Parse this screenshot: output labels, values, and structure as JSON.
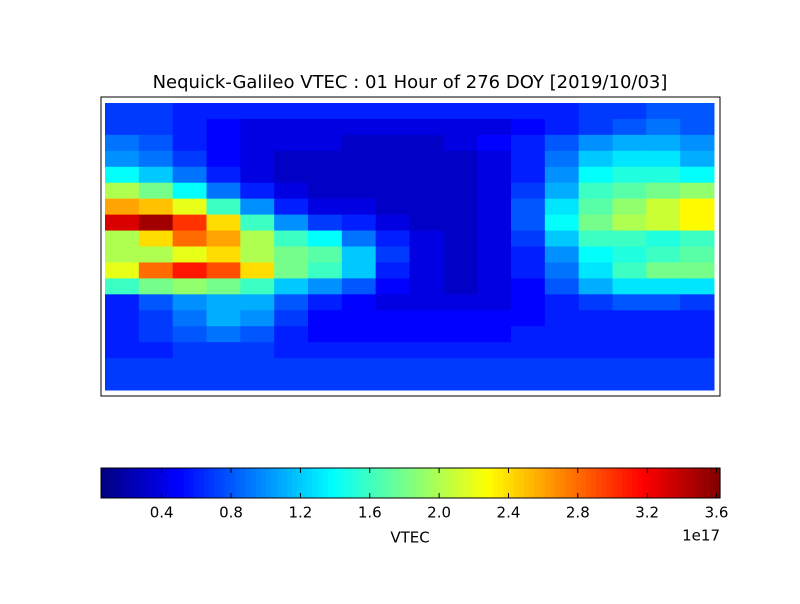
{
  "chart_data": {
    "type": "heatmap",
    "title": "Nequick-Galileo VTEC : 01 Hour of 276 DOY [2019/10/03]",
    "colormap": "jet",
    "xlim": [
      -180,
      180
    ],
    "ylim": [
      -90,
      90
    ],
    "x": [
      -170,
      -150,
      -130,
      -110,
      -90,
      -70,
      -50,
      -30,
      -10,
      10,
      30,
      50,
      70,
      90,
      110,
      130,
      150,
      170
    ],
    "y": [
      85,
      75,
      65,
      55,
      45,
      35,
      25,
      15,
      5,
      -5,
      -15,
      -25,
      -35,
      -45,
      -55,
      -65,
      -75,
      -85
    ],
    "z": [
      [
        0.7,
        0.7,
        0.6,
        0.6,
        0.6,
        0.6,
        0.6,
        0.6,
        0.6,
        0.6,
        0.6,
        0.6,
        0.6,
        0.6,
        0.7,
        0.7,
        0.8,
        0.8
      ],
      [
        0.7,
        0.7,
        0.6,
        0.5,
        0.4,
        0.4,
        0.4,
        0.4,
        0.4,
        0.4,
        0.4,
        0.4,
        0.5,
        0.6,
        0.7,
        0.8,
        0.9,
        0.8
      ],
      [
        0.9,
        0.8,
        0.6,
        0.5,
        0.4,
        0.4,
        0.4,
        0.3,
        0.3,
        0.3,
        0.4,
        0.5,
        0.6,
        0.8,
        1.0,
        1.1,
        1.1,
        1.0
      ],
      [
        1.0,
        0.9,
        0.7,
        0.5,
        0.4,
        0.3,
        0.3,
        0.3,
        0.3,
        0.3,
        0.3,
        0.4,
        0.6,
        0.9,
        1.2,
        1.3,
        1.3,
        1.1
      ],
      [
        1.4,
        1.2,
        0.9,
        0.6,
        0.4,
        0.3,
        0.3,
        0.3,
        0.3,
        0.3,
        0.3,
        0.4,
        0.6,
        1.0,
        1.4,
        1.5,
        1.5,
        1.4
      ],
      [
        2.0,
        1.8,
        1.4,
        0.9,
        0.6,
        0.4,
        0.3,
        0.3,
        0.3,
        0.3,
        0.3,
        0.4,
        0.7,
        1.1,
        1.6,
        1.7,
        1.8,
        1.9
      ],
      [
        2.6,
        2.5,
        2.2,
        1.6,
        1.0,
        0.6,
        0.4,
        0.4,
        0.3,
        0.3,
        0.3,
        0.4,
        0.8,
        1.3,
        1.7,
        1.9,
        2.1,
        2.3
      ],
      [
        3.3,
        3.5,
        3.0,
        2.4,
        1.6,
        1.0,
        0.7,
        0.6,
        0.4,
        0.3,
        0.3,
        0.4,
        0.8,
        1.4,
        1.8,
        2.0,
        2.1,
        2.3
      ],
      [
        2.0,
        2.4,
        2.8,
        2.6,
        2.0,
        1.6,
        1.4,
        0.9,
        0.6,
        0.4,
        0.3,
        0.4,
        0.7,
        1.2,
        1.6,
        1.6,
        1.5,
        1.6
      ],
      [
        2.0,
        2.0,
        2.2,
        2.4,
        2.0,
        1.8,
        1.7,
        1.2,
        0.7,
        0.4,
        0.3,
        0.4,
        0.6,
        1.0,
        1.4,
        1.5,
        1.6,
        1.7
      ],
      [
        2.2,
        2.8,
        3.1,
        2.9,
        2.4,
        1.8,
        1.6,
        1.2,
        0.6,
        0.4,
        0.3,
        0.4,
        0.6,
        0.9,
        1.3,
        1.6,
        1.8,
        1.8
      ],
      [
        1.6,
        1.8,
        1.9,
        1.8,
        1.6,
        1.2,
        1.0,
        0.8,
        0.5,
        0.4,
        0.3,
        0.4,
        0.5,
        0.8,
        1.1,
        1.3,
        1.3,
        1.3
      ],
      [
        0.6,
        0.8,
        1.0,
        1.1,
        1.1,
        0.8,
        0.6,
        0.5,
        0.4,
        0.4,
        0.4,
        0.4,
        0.5,
        0.6,
        0.7,
        0.8,
        0.8,
        0.7
      ],
      [
        0.6,
        0.7,
        0.9,
        1.1,
        1.0,
        0.7,
        0.5,
        0.5,
        0.5,
        0.5,
        0.5,
        0.5,
        0.5,
        0.6,
        0.6,
        0.6,
        0.6,
        0.6
      ],
      [
        0.6,
        0.7,
        0.8,
        0.9,
        0.8,
        0.6,
        0.5,
        0.5,
        0.5,
        0.5,
        0.5,
        0.5,
        0.6,
        0.6,
        0.6,
        0.6,
        0.6,
        0.6
      ],
      [
        0.6,
        0.6,
        0.7,
        0.7,
        0.7,
        0.6,
        0.6,
        0.6,
        0.6,
        0.6,
        0.6,
        0.6,
        0.6,
        0.6,
        0.6,
        0.6,
        0.6,
        0.6
      ],
      [
        0.7,
        0.7,
        0.7,
        0.7,
        0.7,
        0.7,
        0.7,
        0.7,
        0.7,
        0.7,
        0.7,
        0.7,
        0.7,
        0.7,
        0.7,
        0.7,
        0.7,
        0.7
      ],
      [
        0.7,
        0.7,
        0.7,
        0.7,
        0.7,
        0.7,
        0.7,
        0.7,
        0.7,
        0.7,
        0.7,
        0.7,
        0.7,
        0.7,
        0.7,
        0.7,
        0.7,
        0.7
      ]
    ],
    "colorbar": {
      "label": "VTEC",
      "offset_text": "1e17",
      "clim": [
        0.05,
        3.62
      ],
      "ticks": [
        0.4,
        0.8,
        1.2,
        1.6,
        {
          "value": 2,
          "label": "2.0"
        },
        2.4,
        2.8,
        3.2,
        3.6
      ]
    }
  }
}
